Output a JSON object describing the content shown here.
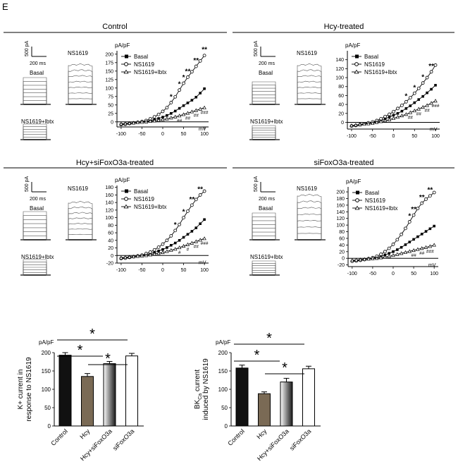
{
  "panel_letter": "E",
  "colors": {
    "ink": "#000000",
    "hcy_bar": "#7a6a55",
    "white": "#ffffff"
  },
  "scale_bar": {
    "amp": "500 pA",
    "time": "200 ms"
  },
  "iv_axis": {
    "unit_y": "pA/pF",
    "unit_x": "mV"
  },
  "marks": {
    "star": "*",
    "dstar": "**",
    "hash": "#",
    "dhash": "##",
    "thash": "###"
  },
  "panels": [
    {
      "title": "Control",
      "trace_labels": {
        "nsplus": "NS1619",
        "basal": "Basal",
        "ibtx": "NS1619+Ibtx"
      }
    },
    {
      "title": "Hcy-treated",
      "trace_labels": {
        "nsplus": "NS1619",
        "basal": "Basal",
        "ibtx": "NS1619+Ibtx"
      }
    },
    {
      "title": "Hcy+siFoxO3a-treated",
      "trace_labels": {
        "nsplus": "NS1619",
        "basal": "Basal",
        "ibtx": "NS1619+Ibtx"
      }
    },
    {
      "title": "siFoxO3a-treated",
      "trace_labels": {
        "nsplus": "NS1619",
        "basal": "Basal",
        "ibtx": "NS1619+Ibtx"
      }
    }
  ],
  "chart_data": [
    {
      "type": "line",
      "title": "Control",
      "xlabel": "mV",
      "ylabel": "pA/pF",
      "xlim": [
        -110,
        110
      ],
      "ylim": [
        -15,
        210
      ],
      "xticks": [
        -100,
        -50,
        0,
        50,
        100
      ],
      "yticks": [
        0,
        25,
        50,
        75,
        100,
        125,
        150,
        175,
        200
      ],
      "x": [
        -100,
        -90,
        -80,
        -70,
        -60,
        -50,
        -40,
        -30,
        -20,
        -10,
        0,
        10,
        20,
        30,
        40,
        50,
        60,
        70,
        80,
        90,
        100
      ],
      "series": [
        {
          "name": "Basal",
          "marker": "filled-square",
          "values": [
            -7,
            -6,
            -5,
            -4,
            -2,
            0,
            2,
            4,
            7,
            10,
            14,
            19,
            25,
            32,
            40,
            48,
            56,
            64,
            73,
            85,
            98
          ]
        },
        {
          "name": "NS1619",
          "marker": "open-circle",
          "values": [
            -8,
            -7,
            -5,
            -3,
            -1,
            1,
            4,
            9,
            15,
            22,
            31,
            42,
            57,
            74,
            94,
            114,
            132,
            148,
            164,
            180,
            196
          ]
        },
        {
          "name": "NS1619+Ibtx",
          "marker": "triangle",
          "values": [
            -6,
            -5,
            -4,
            -3,
            -2,
            -1,
            0,
            2,
            3,
            5,
            7,
            9,
            12,
            15,
            18,
            22,
            26,
            30,
            34,
            38,
            42
          ]
        }
      ],
      "significance": [
        {
          "x": 20,
          "series": "NS1619",
          "mark": "*"
        },
        {
          "x": 40,
          "series": "NS1619",
          "mark": "*"
        },
        {
          "x": 50,
          "series": "NS1619",
          "mark": "*"
        },
        {
          "x": 60,
          "series": "NS1619",
          "mark": "**"
        },
        {
          "x": 80,
          "series": "NS1619",
          "mark": "**"
        },
        {
          "x": 100,
          "series": "NS1619",
          "mark": "**"
        },
        {
          "x": 40,
          "series": "NS1619+Ibtx",
          "mark": "##"
        },
        {
          "x": 60,
          "series": "NS1619+Ibtx",
          "mark": "##"
        },
        {
          "x": 80,
          "series": "NS1619+Ibtx",
          "mark": "##"
        },
        {
          "x": 100,
          "series": "NS1619+Ibtx",
          "mark": "###"
        }
      ]
    },
    {
      "type": "line",
      "title": "Hcy-treated",
      "xlabel": "mV",
      "ylabel": "pA/pF",
      "xlim": [
        -110,
        110
      ],
      "ylim": [
        -15,
        160
      ],
      "xticks": [
        -100,
        -50,
        0,
        50,
        100
      ],
      "yticks": [
        0,
        20,
        40,
        60,
        80,
        100,
        120,
        140
      ],
      "x": [
        -100,
        -90,
        -80,
        -70,
        -60,
        -50,
        -40,
        -30,
        -20,
        -10,
        0,
        10,
        20,
        30,
        40,
        50,
        60,
        70,
        80,
        90,
        100
      ],
      "series": [
        {
          "name": "Basal",
          "marker": "filled-square",
          "values": [
            -8,
            -7,
            -6,
            -4,
            -2,
            0,
            2,
            5,
            8,
            12,
            16,
            20,
            25,
            31,
            37,
            44,
            51,
            58,
            66,
            74,
            83
          ]
        },
        {
          "name": "NS1619",
          "marker": "open-circle",
          "values": [
            -8,
            -7,
            -5,
            -3,
            -1,
            1,
            4,
            8,
            13,
            18,
            24,
            31,
            38,
            46,
            55,
            65,
            76,
            88,
            100,
            113,
            128
          ]
        },
        {
          "name": "NS1619+Ibtx",
          "marker": "triangle",
          "values": [
            -7,
            -6,
            -5,
            -4,
            -3,
            -2,
            0,
            2,
            4,
            6,
            9,
            12,
            15,
            18,
            22,
            26,
            30,
            34,
            38,
            43,
            48
          ]
        }
      ],
      "significance": [
        {
          "x": 30,
          "series": "NS1619",
          "mark": "*"
        },
        {
          "x": 50,
          "series": "NS1619",
          "mark": "*"
        },
        {
          "x": 70,
          "series": "NS1619",
          "mark": "*"
        },
        {
          "x": 90,
          "series": "NS1619",
          "mark": "**"
        },
        {
          "x": 40,
          "series": "NS1619+Ibtx",
          "mark": "##"
        },
        {
          "x": 60,
          "series": "NS1619+Ibtx",
          "mark": "##"
        },
        {
          "x": 80,
          "series": "NS1619+Ibtx",
          "mark": "##"
        },
        {
          "x": 100,
          "series": "NS1619+Ibtx",
          "mark": "###"
        }
      ]
    },
    {
      "type": "line",
      "title": "Hcy+siFoxO3a-treated",
      "xlabel": "mV",
      "ylabel": "pA/pF",
      "xlim": [
        -110,
        110
      ],
      "ylim": [
        -20,
        185
      ],
      "xticks": [
        -100,
        -50,
        0,
        50,
        100
      ],
      "yticks": [
        -20,
        0,
        20,
        40,
        60,
        80,
        100,
        120,
        140,
        160,
        180
      ],
      "x": [
        -100,
        -90,
        -80,
        -70,
        -60,
        -50,
        -40,
        -30,
        -20,
        -10,
        0,
        10,
        20,
        30,
        40,
        50,
        60,
        70,
        80,
        90,
        100
      ],
      "series": [
        {
          "name": "Basal",
          "marker": "filled-square",
          "values": [
            -7,
            -6,
            -5,
            -4,
            -2,
            0,
            2,
            5,
            8,
            12,
            16,
            21,
            27,
            33,
            40,
            48,
            56,
            64,
            73,
            84,
            95
          ]
        },
        {
          "name": "NS1619",
          "marker": "open-circle",
          "values": [
            -8,
            -7,
            -5,
            -3,
            -1,
            1,
            5,
            9,
            15,
            22,
            30,
            40,
            52,
            66,
            82,
            100,
            117,
            133,
            148,
            160,
            170
          ]
        },
        {
          "name": "NS1619+Ibtx",
          "marker": "triangle",
          "values": [
            -6,
            -5,
            -4,
            -3,
            -2,
            -1,
            0,
            2,
            4,
            6,
            8,
            11,
            14,
            17,
            21,
            25,
            29,
            33,
            37,
            41,
            45
          ]
        }
      ],
      "significance": [
        {
          "x": 30,
          "series": "NS1619",
          "mark": "*"
        },
        {
          "x": 50,
          "series": "NS1619",
          "mark": "*"
        },
        {
          "x": 70,
          "series": "NS1619",
          "mark": "**"
        },
        {
          "x": 90,
          "series": "NS1619",
          "mark": "**"
        },
        {
          "x": 40,
          "series": "NS1619+Ibtx",
          "mark": "#"
        },
        {
          "x": 60,
          "series": "NS1619+Ibtx",
          "mark": "#"
        },
        {
          "x": 80,
          "series": "NS1619+Ibtx",
          "mark": "##"
        },
        {
          "x": 100,
          "series": "NS1619+Ibtx",
          "mark": "###"
        }
      ]
    },
    {
      "type": "line",
      "title": "siFoxO3a-treated",
      "xlabel": "mV",
      "ylabel": "pA/pF",
      "xlim": [
        -110,
        110
      ],
      "ylim": [
        -25,
        215
      ],
      "xticks": [
        -100,
        -50,
        0,
        50,
        100
      ],
      "yticks": [
        -20,
        0,
        20,
        40,
        60,
        80,
        100,
        120,
        140,
        160,
        180,
        200
      ],
      "x": [
        -100,
        -90,
        -80,
        -70,
        -60,
        -50,
        -40,
        -30,
        -20,
        -10,
        0,
        10,
        20,
        30,
        40,
        50,
        60,
        70,
        80,
        90,
        100
      ],
      "series": [
        {
          "name": "Basal",
          "marker": "filled-square",
          "values": [
            -8,
            -7,
            -6,
            -4,
            -2,
            0,
            3,
            6,
            10,
            15,
            20,
            26,
            33,
            41,
            49,
            57,
            65,
            73,
            81,
            89,
            97
          ]
        },
        {
          "name": "NS1619",
          "marker": "open-circle",
          "values": [
            -9,
            -8,
            -6,
            -4,
            -1,
            2,
            6,
            12,
            20,
            30,
            42,
            56,
            72,
            90,
            110,
            130,
            150,
            166,
            178,
            188,
            198
          ]
        },
        {
          "name": "NS1619+Ibtx",
          "marker": "triangle",
          "values": [
            -6,
            -5,
            -4,
            -3,
            -2,
            -1,
            0,
            2,
            4,
            6,
            9,
            12,
            15,
            18,
            21,
            24,
            27,
            30,
            33,
            36,
            40
          ]
        }
      ],
      "significance": [
        {
          "x": 40,
          "series": "NS1619",
          "mark": "*"
        },
        {
          "x": 50,
          "series": "NS1619",
          "mark": "**"
        },
        {
          "x": 70,
          "series": "NS1619",
          "mark": "**"
        },
        {
          "x": 90,
          "series": "NS1619",
          "mark": "**"
        },
        {
          "x": 50,
          "series": "NS1619+Ibtx",
          "mark": "##"
        },
        {
          "x": 70,
          "series": "NS1619+Ibtx",
          "mark": "##"
        },
        {
          "x": 90,
          "series": "NS1619+Ibtx",
          "mark": "###"
        }
      ]
    },
    {
      "type": "bar",
      "title": "",
      "ylabel": "K+ current in response to NS1619",
      "unit": "pA/pF",
      "ylim": [
        0,
        200
      ],
      "yticks": [
        0,
        50,
        100,
        150,
        200
      ],
      "categories": [
        "Control",
        "Hcy",
        "Hcy+siFoxO3a",
        "siFoxO3a"
      ],
      "values": [
        193,
        135,
        170,
        191
      ],
      "errors": [
        7,
        8,
        6,
        7
      ],
      "fills": [
        "black",
        "brown",
        "gradient",
        "white"
      ],
      "significance": [
        {
          "from": 0,
          "to": 2,
          "label": "*"
        },
        {
          "from": 0,
          "to": 1,
          "label": "*"
        },
        {
          "from": 1,
          "to": 2,
          "label": "*"
        }
      ]
    },
    {
      "type": "bar",
      "title": "",
      "ylabel_main": "BK",
      "ylabel_sub": "Ca",
      "ylabel_rest": " current induced by NS1619",
      "unit": "pA/pF",
      "ylim": [
        0,
        200
      ],
      "yticks": [
        0,
        50,
        100,
        150,
        200
      ],
      "categories": [
        "Control",
        "Hcy",
        "Hcy+siFoxO3a",
        "siFoxO3a"
      ],
      "values": [
        158,
        88,
        120,
        156
      ],
      "errors": [
        8,
        5,
        10,
        7
      ],
      "fills": [
        "black",
        "brown",
        "gradient",
        "white"
      ],
      "significance": [
        {
          "from": 0,
          "to": 2,
          "label": "*"
        },
        {
          "from": 0,
          "to": 1,
          "label": "*"
        },
        {
          "from": 1,
          "to": 2,
          "label": "*"
        }
      ]
    }
  ]
}
